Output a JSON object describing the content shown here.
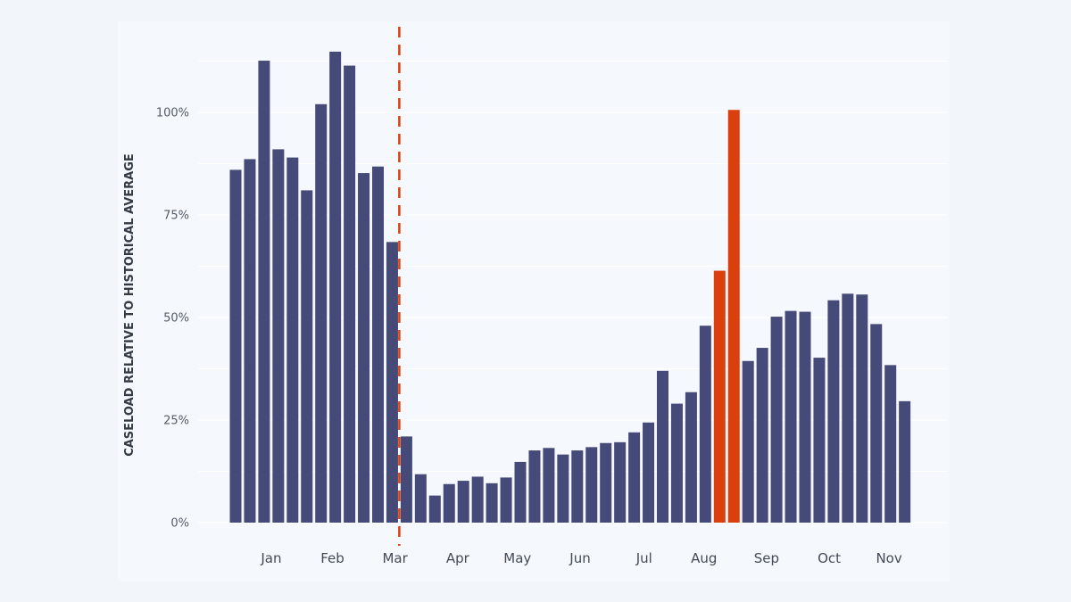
{
  "chart_data": {
    "type": "bar",
    "title": "",
    "ylabel": "CASELOAD RELATIVE TO HISTORICAL AVERAGE",
    "xlabel": "",
    "ylim": [
      0,
      1.125
    ],
    "y_ticks": [
      {
        "value": 0,
        "label": "0%"
      },
      {
        "value": 0.25,
        "label": "25%"
      },
      {
        "value": 0.5,
        "label": "50%"
      },
      {
        "value": 0.75,
        "label": "75%"
      },
      {
        "value": 1.0,
        "label": "100%"
      }
    ],
    "months": [
      {
        "label": "Jan",
        "center_bar": 2.5
      },
      {
        "label": "Feb",
        "center_bar": 6.8
      },
      {
        "label": "Mar",
        "center_bar": 11.2
      },
      {
        "label": "Apr",
        "center_bar": 15.6
      },
      {
        "label": "May",
        "center_bar": 19.8
      },
      {
        "label": "Jun",
        "center_bar": 24.2
      },
      {
        "label": "Jul",
        "center_bar": 28.7
      },
      {
        "label": "Aug",
        "center_bar": 32.9
      },
      {
        "label": "Sep",
        "center_bar": 37.3
      },
      {
        "label": "Oct",
        "center_bar": 41.7
      },
      {
        "label": "Nov",
        "center_bar": 45.9
      }
    ],
    "values": [
      0.86,
      0.886,
      1.126,
      0.91,
      0.89,
      0.81,
      1.02,
      1.148,
      1.114,
      0.852,
      0.868,
      0.684,
      0.21,
      0.118,
      0.066,
      0.094,
      0.102,
      0.112,
      0.096,
      0.11,
      0.148,
      0.176,
      0.182,
      0.166,
      0.176,
      0.184,
      0.194,
      0.196,
      0.22,
      0.244,
      0.37,
      0.29,
      0.318,
      0.48,
      0.614,
      1.006,
      0.394,
      0.426,
      0.502,
      0.516,
      0.514,
      0.402,
      0.542,
      0.558,
      0.556,
      0.484,
      0.384,
      0.296
    ],
    "highlight_indices": [
      34,
      35
    ],
    "reference_line_after_bar": 11,
    "colors": {
      "bar": "#454a78",
      "highlight": "#d9400e",
      "reference_line": "#d9400e",
      "grid": "#ffffff"
    }
  }
}
